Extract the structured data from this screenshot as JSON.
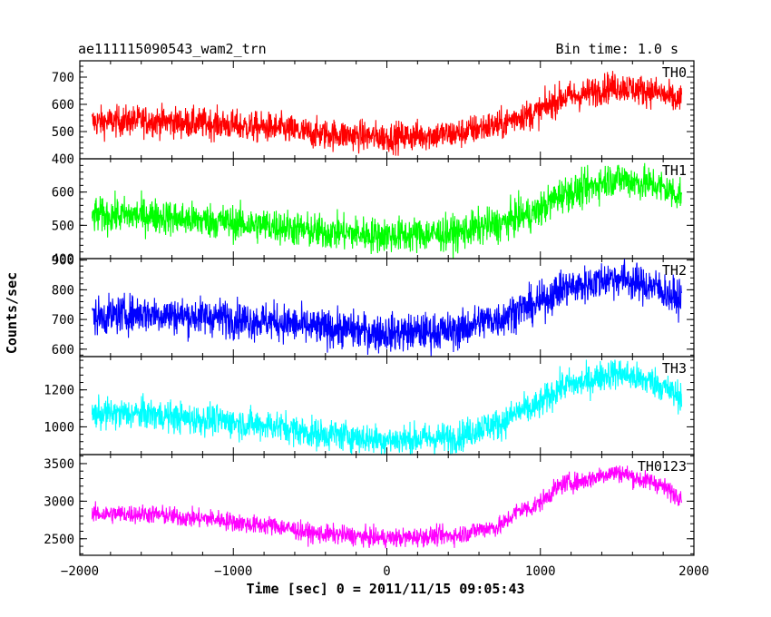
{
  "chart_data": {
    "type": "line",
    "title": "ae111115090543_wam2_trn",
    "bin_time_label": "Bin time: 1.0 s",
    "xlabel": "Time [sec] 0 = 2011/11/15 09:05:43",
    "ylabel": "Counts/sec",
    "xlim": [
      -2000,
      2000
    ],
    "x_ticks": [
      -2000,
      -1000,
      0,
      1000,
      2000
    ],
    "x_tick_labels": [
      "−2000",
      "−1000",
      "0",
      "1000",
      "2000"
    ],
    "x_data_range": [
      -1920,
      1920
    ],
    "panels": [
      {
        "name": "TH0",
        "color": "#ff0000",
        "ylim": [
          400,
          760
        ],
        "y_ticks": [
          400,
          500,
          600,
          700
        ],
        "y_tick_labels": [
          "400",
          "500",
          "600",
          "700"
        ],
        "series_x": [
          -1920,
          -1600,
          -1200,
          -800,
          -400,
          0,
          400,
          700,
          900,
          1200,
          1500,
          1700,
          1920
        ],
        "series_y": [
          535,
          540,
          530,
          515,
          490,
          480,
          490,
          520,
          560,
          630,
          665,
          650,
          615
        ],
        "noise": 40
      },
      {
        "name": "TH1",
        "color": "#00ff00",
        "ylim": [
          400,
          700
        ],
        "y_ticks": [
          400,
          500,
          600
        ],
        "y_tick_labels": [
          "400",
          "500",
          "600"
        ],
        "series_x": [
          -1920,
          -1600,
          -1200,
          -800,
          -400,
          0,
          400,
          700,
          900,
          1200,
          1500,
          1700,
          1920
        ],
        "series_y": [
          530,
          530,
          515,
          500,
          480,
          470,
          475,
          500,
          530,
          600,
          640,
          625,
          595
        ],
        "noise": 38
      },
      {
        "name": "TH2",
        "color": "#0000ff",
        "ylim": [
          575,
          905
        ],
        "y_ticks": [
          600,
          700,
          800,
          900
        ],
        "y_tick_labels": [
          "600",
          "700",
          "800",
          "900"
        ],
        "series_x": [
          -1920,
          -1600,
          -1200,
          -800,
          -400,
          0,
          400,
          700,
          900,
          1200,
          1500,
          1700,
          1920
        ],
        "series_y": [
          710,
          720,
          710,
          695,
          670,
          655,
          660,
          700,
          740,
          810,
          840,
          815,
          770
        ],
        "noise": 45
      },
      {
        "name": "TH3",
        "color": "#00ffff",
        "ylim": [
          850,
          1380
        ],
        "y_ticks": [
          1000,
          1200
        ],
        "y_tick_labels": [
          "1000",
          "1200"
        ],
        "series_x": [
          -1920,
          -1600,
          -1200,
          -800,
          -400,
          0,
          400,
          700,
          900,
          1200,
          1500,
          1700,
          1920
        ],
        "series_y": [
          1070,
          1070,
          1040,
          1010,
          960,
          930,
          940,
          1010,
          1090,
          1230,
          1290,
          1250,
          1170
        ],
        "noise": 60
      },
      {
        "name": "TH0123",
        "color": "#ff00ff",
        "ylim": [
          2280,
          3620
        ],
        "y_ticks": [
          2500,
          3000,
          3500
        ],
        "y_tick_labels": [
          "2500",
          "3000",
          "3500"
        ],
        "series_x": [
          -1920,
          -1600,
          -1200,
          -800,
          -400,
          0,
          400,
          700,
          900,
          1200,
          1500,
          1700,
          1920
        ],
        "series_y": [
          2830,
          2830,
          2770,
          2680,
          2560,
          2510,
          2540,
          2650,
          2900,
          3250,
          3380,
          3270,
          3080
        ],
        "noise": 90
      }
    ]
  }
}
